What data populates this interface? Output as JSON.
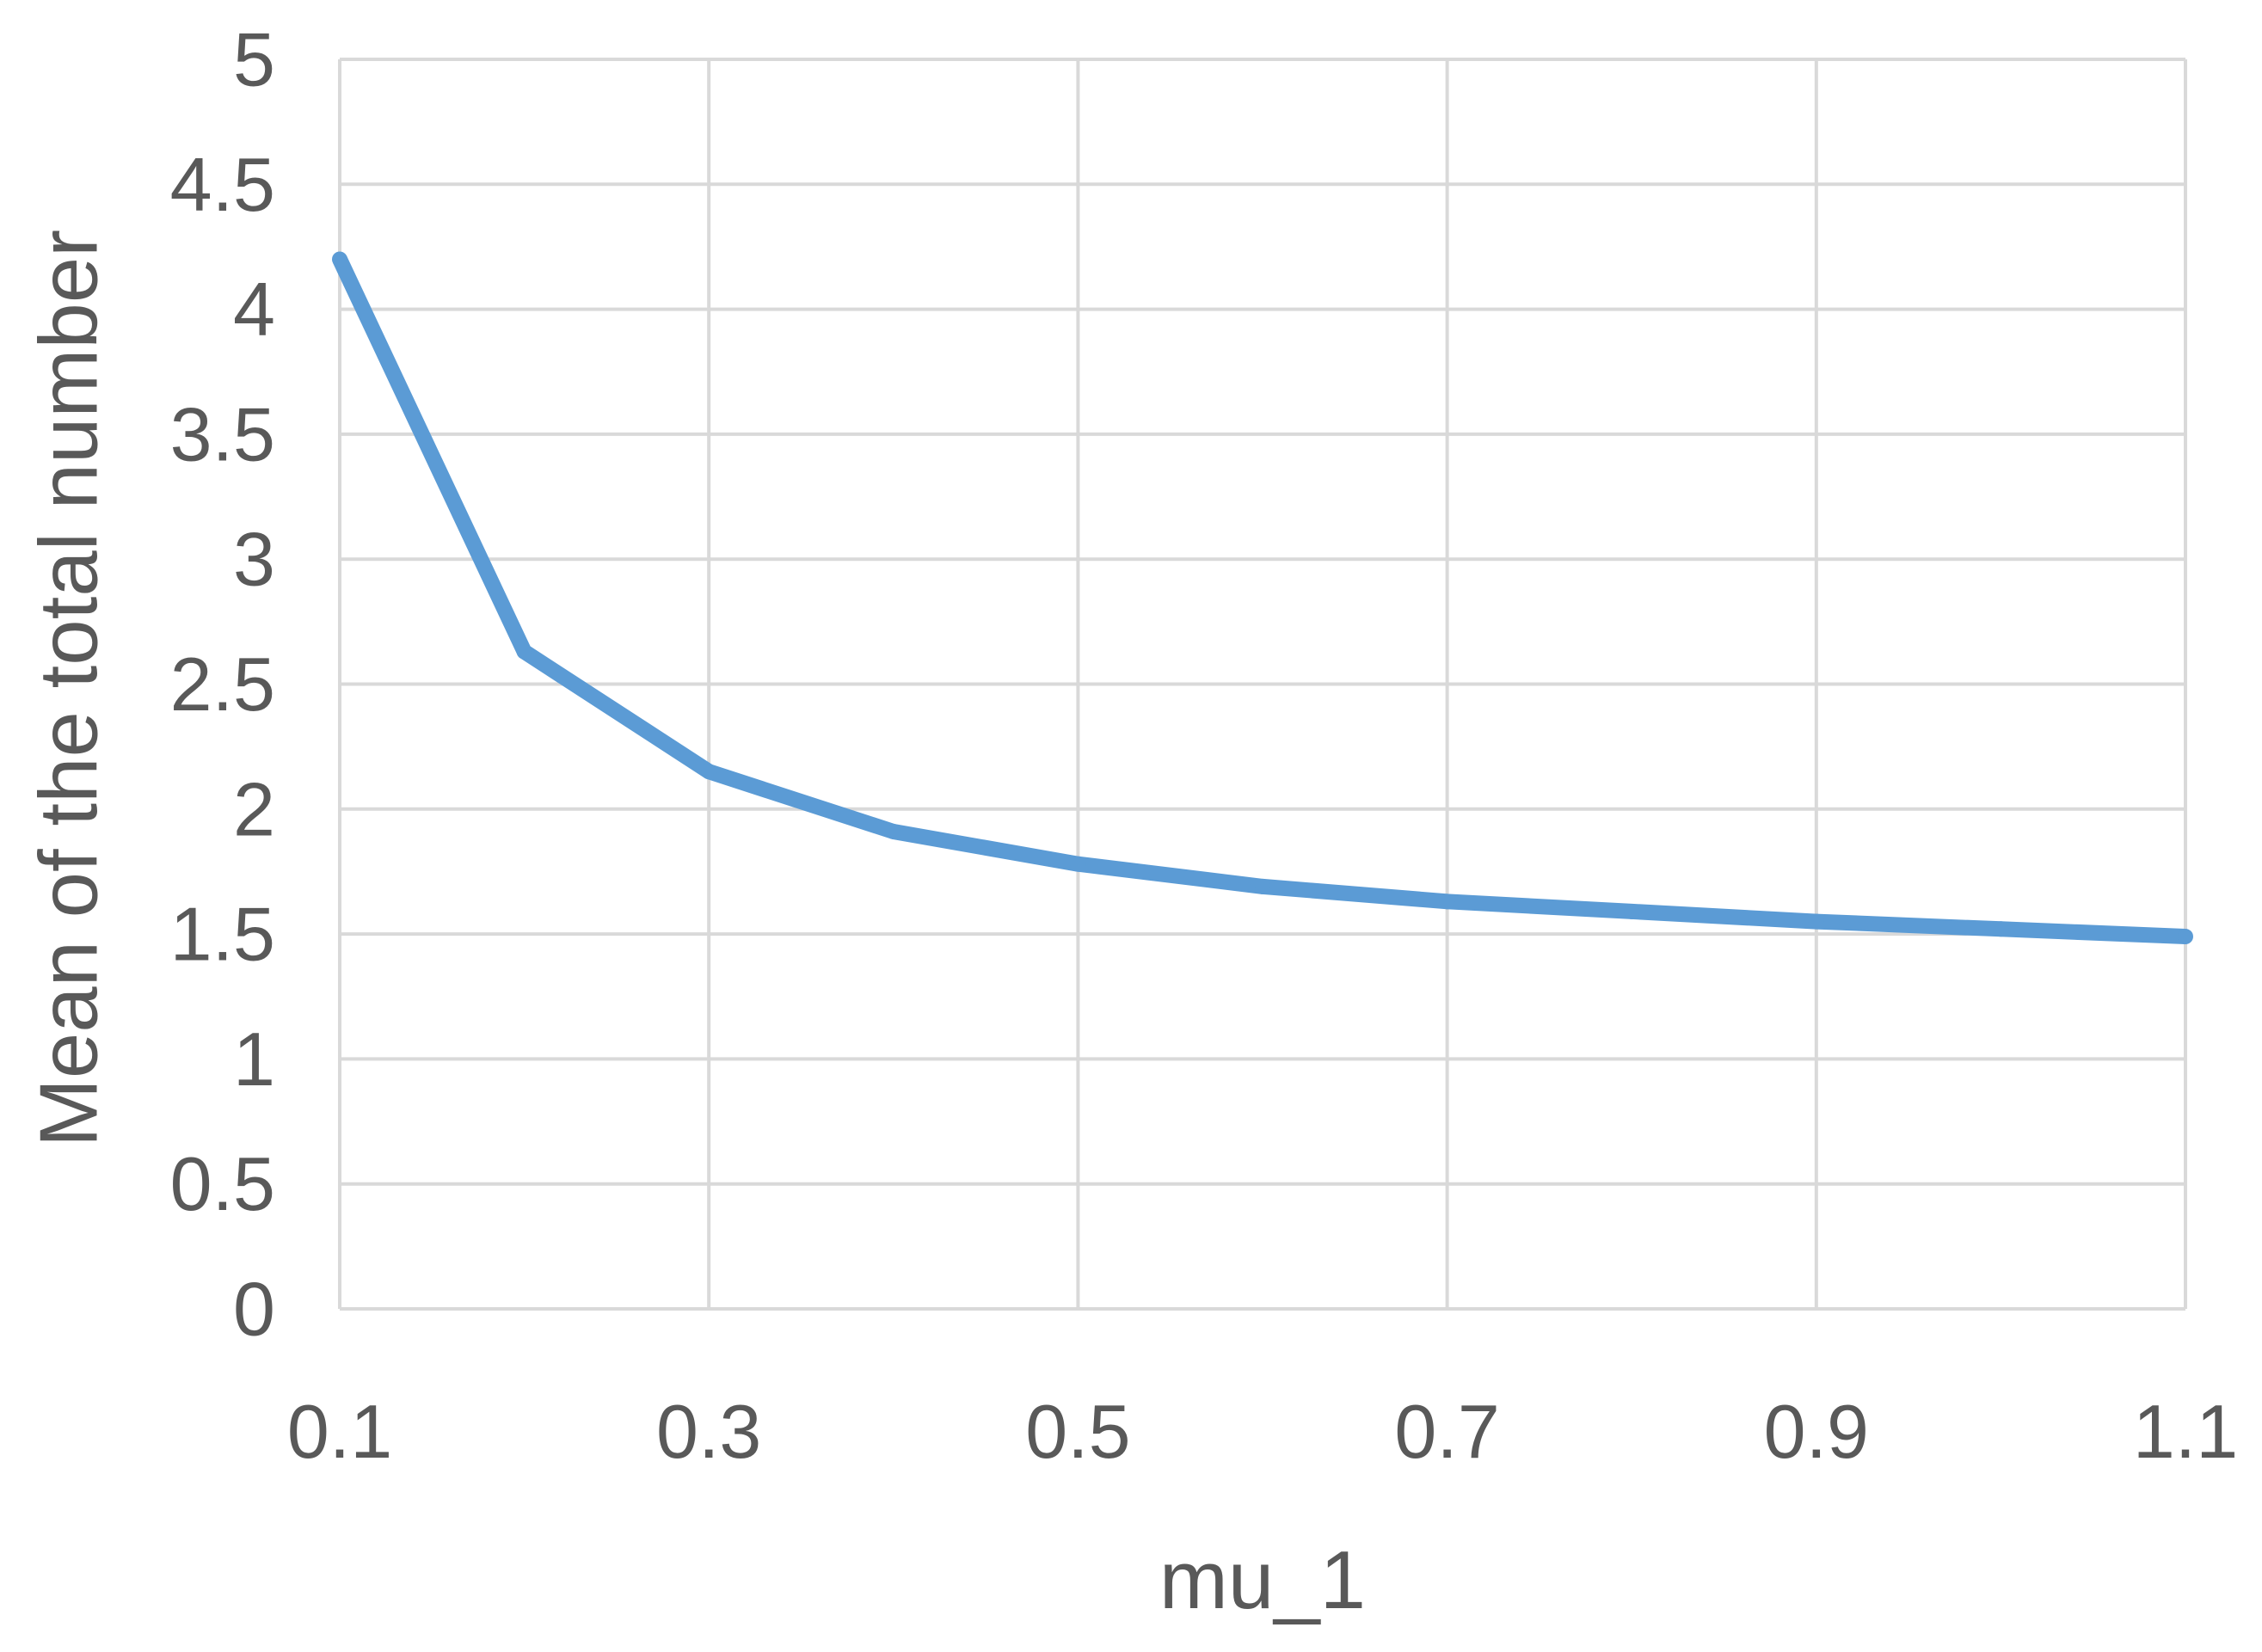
{
  "chart_data": {
    "type": "line",
    "title": "",
    "xlabel": "mu_1",
    "ylabel": "Mean of the total number",
    "x": [
      0.1,
      0.2,
      0.3,
      0.4,
      0.5,
      0.6,
      0.7,
      0.8,
      0.9,
      1.0,
      1.1
    ],
    "series": [
      {
        "values": [
          4.2,
          2.63,
          2.15,
          1.91,
          1.78,
          1.69,
          1.63,
          1.59,
          1.55,
          1.52,
          1.49
        ],
        "color": "#5b9bd5"
      }
    ],
    "xlim": [
      0.1,
      1.1
    ],
    "ylim": [
      0,
      5
    ],
    "x_ticks": [
      "0.1",
      "0.3",
      "0.5",
      "0.7",
      "0.9",
      "1.1"
    ],
    "y_ticks": [
      "0",
      "0.5",
      "1",
      "1.5",
      "2",
      "2.5",
      "3",
      "3.5",
      "4",
      "4.5",
      "5"
    ],
    "grid": true,
    "legend": "none"
  }
}
